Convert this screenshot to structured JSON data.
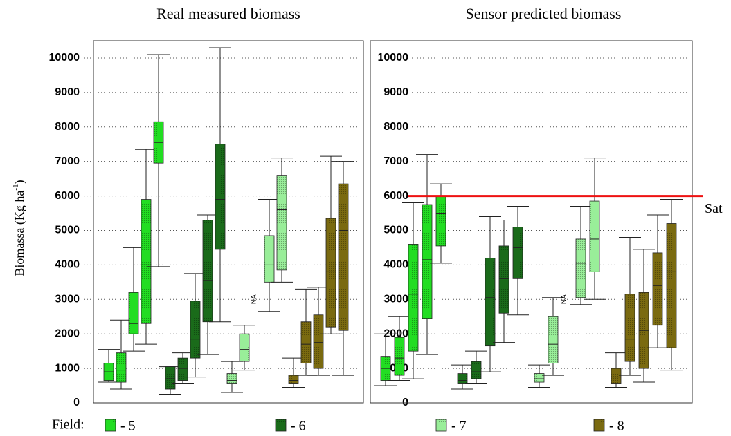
{
  "chart_data": [
    {
      "type": "box",
      "title": "Real measured biomass",
      "ylabel": "Biomassa (Kg ha",
      "ylabel_sup": "-1",
      "ylabel_end": ")",
      "legend_title": "Field:",
      "na_label": "NA",
      "ylim": [
        0,
        10500
      ],
      "yticks": [
        0,
        1000,
        2000,
        3000,
        4000,
        5000,
        6000,
        7000,
        8000,
        9000,
        10000
      ],
      "grid": true,
      "series": [
        {
          "name": "- 5",
          "color": "#22dd22",
          "min": [
            600,
            400,
            1500,
            1700,
            3950
          ],
          "q1": [
            650,
            600,
            2000,
            2300,
            6950
          ],
          "median": [
            900,
            950,
            2300,
            4000,
            7550
          ],
          "q3": [
            1150,
            1450,
            3200,
            5900,
            8150
          ],
          "max": [
            1550,
            2400,
            4500,
            7350,
            10100
          ]
        },
        {
          "name": "- 6",
          "color": "#1a6b1a",
          "min": [
            250,
            550,
            750,
            1400,
            2350
          ],
          "q1": [
            400,
            650,
            1300,
            2350,
            4450
          ],
          "median": [
            700,
            1000,
            1850,
            3550,
            5900
          ],
          "q3": [
            1050,
            1300,
            2950,
            5300,
            7500
          ],
          "max": [
            1050,
            1450,
            3750,
            5450,
            10300
          ]
        },
        {
          "name": "- 7",
          "color": "#99ee99",
          "min": [
            300,
            950,
            null,
            2650,
            3500
          ],
          "q1": [
            550,
            1200,
            null,
            3500,
            3850
          ],
          "median": [
            650,
            1550,
            null,
            4000,
            5600
          ],
          "q3": [
            850,
            2000,
            null,
            4850,
            6600
          ],
          "max": [
            1200,
            2250,
            null,
            5900,
            7100
          ]
        },
        {
          "name": "- 8",
          "color": "#7a6a10",
          "min": [
            450,
            800,
            800,
            2000,
            800
          ],
          "q1": [
            550,
            1150,
            1000,
            2200,
            2100
          ],
          "median": [
            650,
            1700,
            1750,
            3800,
            5000
          ],
          "q3": [
            800,
            2350,
            2550,
            5350,
            6350
          ],
          "max": [
            1300,
            3300,
            3350,
            7150,
            7000
          ]
        }
      ]
    },
    {
      "type": "box",
      "title": "Sensor predicted biomass",
      "na_label": "NA",
      "ylim": [
        0,
        10500
      ],
      "yticks": [
        0,
        1000,
        2000,
        3000,
        4000,
        5000,
        6000,
        7000,
        8000,
        9000,
        10000
      ],
      "grid": true,
      "hline": {
        "value": 6000,
        "label": "Sat",
        "color": "#ee1111"
      },
      "series": [
        {
          "color": "#22dd22",
          "min": [
            500,
            650,
            700,
            1400,
            4050
          ],
          "q1": [
            650,
            800,
            1500,
            2450,
            4550
          ],
          "median": [
            1000,
            1300,
            3150,
            4150,
            5500
          ],
          "q3": [
            1350,
            1900,
            4600,
            5750,
            6000
          ],
          "max": [
            2000,
            2500,
            5800,
            7200,
            6350
          ]
        },
        {
          "color": "#1a6b1a",
          "min": [
            400,
            550,
            900,
            1750,
            2550
          ],
          "q1": [
            550,
            700,
            1650,
            2600,
            3600
          ],
          "median": [
            650,
            900,
            3050,
            3600,
            4500
          ],
          "q3": [
            850,
            1200,
            4200,
            4550,
            5100
          ],
          "max": [
            1100,
            1500,
            5400,
            5300,
            5700
          ]
        },
        {
          "color": "#99ee99",
          "min": [
            450,
            800,
            null,
            2850,
            3000
          ],
          "q1": [
            600,
            1150,
            null,
            3050,
            3800
          ],
          "median": [
            700,
            1700,
            null,
            4050,
            4750
          ],
          "q3": [
            850,
            2500,
            null,
            4750,
            5850
          ],
          "max": [
            1100,
            3050,
            null,
            5700,
            7100
          ]
        },
        {
          "color": "#7a6a10",
          "min": [
            450,
            800,
            600,
            1600,
            950
          ],
          "q1": [
            550,
            1200,
            1000,
            2250,
            1600
          ],
          "median": [
            750,
            1850,
            2100,
            3400,
            3800
          ],
          "q3": [
            1000,
            3150,
            3200,
            4350,
            5200
          ],
          "max": [
            1450,
            4800,
            4450,
            5450,
            5900
          ]
        }
      ]
    }
  ]
}
